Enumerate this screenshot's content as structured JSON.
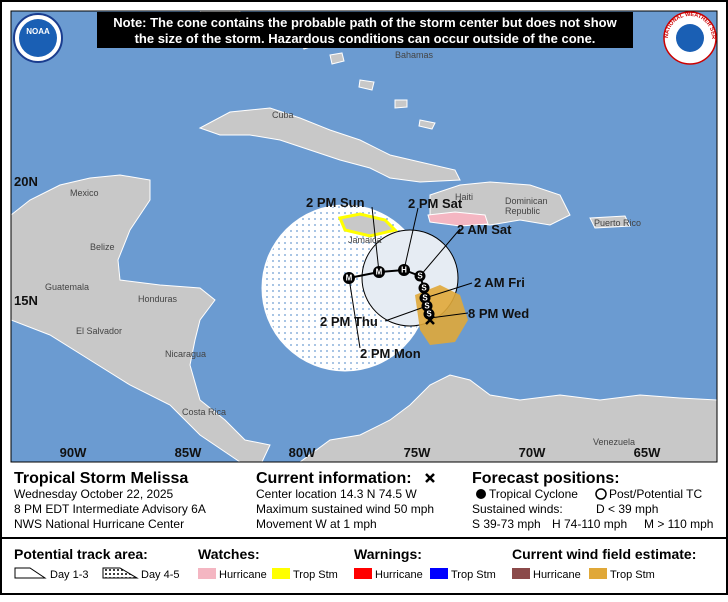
{
  "note": [
    "Note: The cone contains the probable path of the storm center but does not show",
    "the size of the storm. Hazardous conditions can occur outside of the cone."
  ],
  "logos": {
    "noaa": "NOAA",
    "nws": "NATIONAL WEATHER SERVICE"
  },
  "places": {
    "bahamas": "Bahamas",
    "cuba": "Cuba",
    "mexico": "Mexico",
    "belize": "Belize",
    "guatemala": "Guatemala",
    "honduras": "Honduras",
    "el_salvador": "El Salvador",
    "nicaragua": "Nicaragua",
    "costa_rica": "Costa Rica",
    "jamaica": "Jamaica",
    "haiti": "Haiti",
    "dominican": [
      "Dominican",
      "Republic"
    ],
    "puerto_rico": "Puerto Rico",
    "venezuela": "Venezuela"
  },
  "latitudes": [
    "20N",
    "15N"
  ],
  "longitudes": [
    "90W",
    "85W",
    "80W",
    "75W",
    "70W",
    "65W"
  ],
  "forecast_points": [
    "M",
    "M",
    "H",
    "S",
    "S",
    "S",
    "S",
    "S"
  ],
  "forecast_labels": [
    "2 PM Sun",
    "2 PM Sat",
    "2 AM Sat",
    "2 AM Fri",
    "8 PM Wed",
    "2 PM Thu",
    "2 PM Mon"
  ],
  "info": {
    "storm": "Tropical Storm Melissa",
    "lines": [
      "Wednesday October 22, 2025",
      "8 PM EDT Intermediate Advisory 6A",
      "NWS National Hurricane Center"
    ]
  },
  "current": {
    "heading": "Current information:",
    "lines": [
      "Center location 14.3 N 74.5 W",
      "Maximum sustained wind 50 mph",
      "Movement W at 1 mph"
    ]
  },
  "forecast": {
    "heading": "Forecast positions:",
    "tropical": "Tropical Cyclone",
    "post": "Post/Potential TC",
    "winds": "Sustained winds:",
    "d": "D < 39 mph",
    "s": "S 39-73 mph",
    "h": "H 74-110 mph",
    "m": "M > 110 mph"
  },
  "legend": {
    "track": {
      "heading": "Potential track area:",
      "day13": "Day 1-3",
      "day45": "Day 4-5"
    },
    "watches": {
      "heading": "Watches:",
      "hurricane": "Hurricane",
      "ts": "Trop Stm"
    },
    "warnings": {
      "heading": "Warnings:",
      "hurricane": "Hurricane",
      "ts": "Trop Stm"
    },
    "wind": {
      "heading": "Current wind field estimate:",
      "hurricane": "Hurricane",
      "ts": "Trop Stm"
    }
  }
}
